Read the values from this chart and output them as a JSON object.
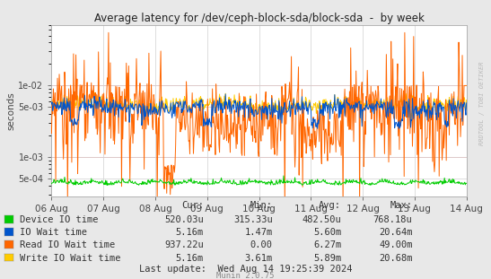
{
  "title": "Average latency for /dev/ceph-block-sda/block-sda  -  by week",
  "ylabel": "seconds",
  "background_color": "#e8e8e8",
  "plot_bg_color": "#ffffff",
  "grid_color": "#d0d0d0",
  "ref_line_color": "#ffb0b0",
  "x_labels": [
    "06 Aug",
    "07 Aug",
    "08 Aug",
    "09 Aug",
    "10 Aug",
    "11 Aug",
    "12 Aug",
    "13 Aug",
    "14 Aug"
  ],
  "y_ticks": [
    0.0005,
    0.001,
    0.005,
    0.01
  ],
  "legend": [
    {
      "label": "Device IO time",
      "color": "#00cc00"
    },
    {
      "label": "IO Wait time",
      "color": "#0055cc"
    },
    {
      "label": "Read IO Wait time",
      "color": "#ff6600"
    },
    {
      "label": "Write IO Wait time",
      "color": "#ffcc00"
    }
  ],
  "table_headers": [
    "Cur:",
    "Min:",
    "Avg:",
    "Max:"
  ],
  "table_rows": [
    [
      "Device IO time",
      "520.03u",
      "315.33u",
      "482.50u",
      "768.18u"
    ],
    [
      "IO Wait time",
      "5.16m",
      "1.47m",
      "5.60m",
      "20.64m"
    ],
    [
      "Read IO Wait time",
      "937.22u",
      "0.00",
      "6.27m",
      "49.00m"
    ],
    [
      "Write IO Wait time",
      "5.16m",
      "3.61m",
      "5.89m",
      "20.68m"
    ]
  ],
  "last_update": "Last update:  Wed Aug 14 19:25:39 2024",
  "munin_version": "Munin 2.0.75",
  "watermark": "RRDTOOL / TOBI OETIKER",
  "n_points": 700
}
